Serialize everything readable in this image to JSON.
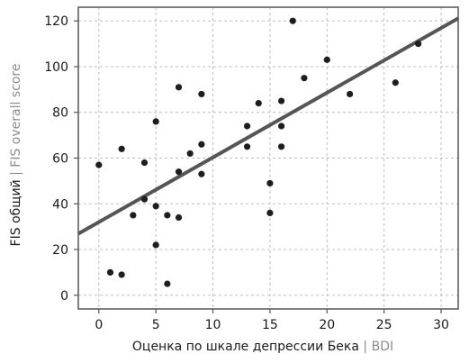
{
  "chart_data": {
    "type": "scatter",
    "xlabel": {
      "primary": "Оценка по шкале депрессии Бека",
      "separator": " | ",
      "secondary": "BDI"
    },
    "ylabel": {
      "primary": "FIS общий",
      "separator": " | ",
      "secondary": "FIS overall score"
    },
    "xlim": [
      -1.8,
      31.5
    ],
    "ylim": [
      -6,
      126
    ],
    "x_ticks": [
      0,
      5,
      10,
      15,
      20,
      25,
      30
    ],
    "y_ticks": [
      0,
      20,
      40,
      60,
      80,
      100,
      120
    ],
    "grid": true,
    "points": [
      {
        "x": 0,
        "y": 57
      },
      {
        "x": 1,
        "y": 10
      },
      {
        "x": 2,
        "y": 9
      },
      {
        "x": 2,
        "y": 64
      },
      {
        "x": 3,
        "y": 35
      },
      {
        "x": 4,
        "y": 58
      },
      {
        "x": 4,
        "y": 42
      },
      {
        "x": 5,
        "y": 76
      },
      {
        "x": 5,
        "y": 39
      },
      {
        "x": 5,
        "y": 22
      },
      {
        "x": 6,
        "y": 35
      },
      {
        "x": 6,
        "y": 5
      },
      {
        "x": 7,
        "y": 91
      },
      {
        "x": 7,
        "y": 54
      },
      {
        "x": 7,
        "y": 34
      },
      {
        "x": 8,
        "y": 62
      },
      {
        "x": 9,
        "y": 88
      },
      {
        "x": 9,
        "y": 66
      },
      {
        "x": 9,
        "y": 53
      },
      {
        "x": 13,
        "y": 74
      },
      {
        "x": 13,
        "y": 65
      },
      {
        "x": 14,
        "y": 84
      },
      {
        "x": 15,
        "y": 49
      },
      {
        "x": 15,
        "y": 36
      },
      {
        "x": 16,
        "y": 85
      },
      {
        "x": 16,
        "y": 74
      },
      {
        "x": 16,
        "y": 65
      },
      {
        "x": 17,
        "y": 120
      },
      {
        "x": 18,
        "y": 95
      },
      {
        "x": 20,
        "y": 103
      },
      {
        "x": 22,
        "y": 88
      },
      {
        "x": 26,
        "y": 93
      },
      {
        "x": 28,
        "y": 110
      }
    ],
    "trendline": {
      "intercept": 32,
      "slope": 2.83
    },
    "colors": {
      "points": "#1e1e1e",
      "trendline": "#555555",
      "grid": "#bdbdbd",
      "frame": "#555555"
    }
  }
}
